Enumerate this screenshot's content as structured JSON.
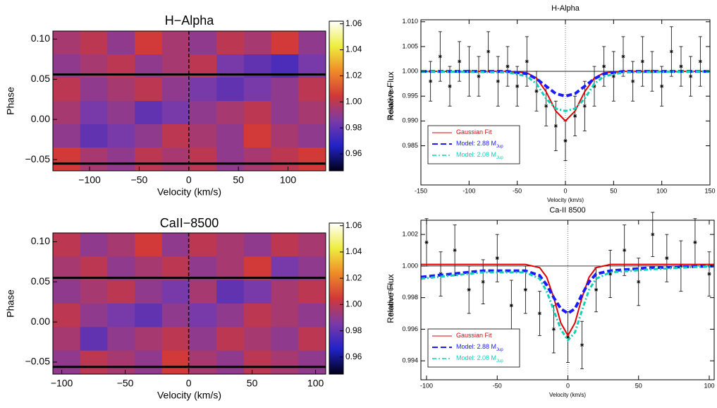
{
  "chart_data": [
    {
      "type": "heatmap",
      "title": "H−Alpha",
      "xlabel": "Velocity (km/s)",
      "ylabel": "Phase",
      "colorbar_label": "Relative Flux",
      "xlim": [
        -137,
        138
      ],
      "ylim": [
        -0.064,
        0.11
      ],
      "zlim": [
        0.947,
        1.062
      ],
      "xticks": [
        {
          "value": -100,
          "label": "−100"
        },
        {
          "value": -50,
          "label": "−50"
        },
        0,
        50,
        100
      ],
      "yticks": [
        {
          "value": -0.05,
          "label": "−0.05"
        },
        {
          "value": 0,
          "label": "0.00"
        },
        0.05,
        {
          "value": 0.1,
          "label": "0.10"
        }
      ],
      "zticks": [
        0.96,
        0.98,
        {
          "value": 1,
          "label": "1.00"
        },
        1.02,
        1.04,
        1.06
      ],
      "colormap": [
        "#000018",
        "#2222c8",
        "#7a3aa8",
        "#d03838",
        "#f08a28",
        "#eeee40",
        "#ffffff"
      ],
      "hlines": [
        0.056,
        -0.055
      ],
      "vlines": [
        0
      ],
      "z": [
        [
          0.995,
          1.0,
          0.99,
          1.005,
          0.995,
          0.99,
          1.0,
          0.995,
          1.005,
          0.99
        ],
        [
          0.99,
          0.995,
          1.0,
          0.99,
          0.995,
          1.0,
          0.985,
          0.98,
          0.975,
          0.985
        ],
        [
          1.0,
          0.99,
          0.995,
          1.0,
          0.99,
          0.985,
          0.98,
          0.985,
          0.99,
          1.0
        ],
        [
          0.995,
          0.985,
          0.99,
          0.98,
          0.985,
          0.99,
          0.995,
          1.0,
          0.99,
          0.995
        ],
        [
          0.99,
          0.98,
          0.985,
          0.99,
          1.0,
          0.995,
          0.99,
          1.005,
          0.995,
          0.99
        ],
        [
          1.005,
          0.995,
          0.99,
          1.0,
          0.995,
          1.0,
          0.99,
          0.995,
          1.0,
          1.005
        ]
      ]
    },
    {
      "type": "heatmap",
      "title": "CaII−8500",
      "xlabel": "Velocity (km/s)",
      "ylabel": "Phase",
      "colorbar_label": "Relative Flux",
      "xlim": [
        -107,
        108
      ],
      "ylim": [
        -0.065,
        0.111
      ],
      "zlim": [
        0.947,
        1.062
      ],
      "xticks": [
        {
          "value": -100,
          "label": "−100"
        },
        {
          "value": -50,
          "label": "−50"
        },
        0,
        50,
        100
      ],
      "yticks": [
        {
          "value": -0.05,
          "label": "−0.05"
        },
        {
          "value": 0,
          "label": "0.00"
        },
        0.05,
        {
          "value": 0.1,
          "label": "0.10"
        }
      ],
      "zticks": [
        0.96,
        0.98,
        {
          "value": 1,
          "label": "1.00"
        },
        1.02,
        1.04,
        1.06
      ],
      "colormap": [
        "#000018",
        "#2222c8",
        "#7a3aa8",
        "#d03838",
        "#f08a28",
        "#eeee40",
        "#ffffff"
      ],
      "hlines": [
        0.055,
        -0.056
      ],
      "vlines": [
        0
      ],
      "z": [
        [
          1.0,
          0.99,
          0.995,
          1.005,
          0.99,
          1.0,
          0.995,
          0.99,
          1.0,
          0.995
        ],
        [
          0.995,
          1.0,
          0.99,
          0.995,
          1.0,
          0.99,
          0.995,
          1.005,
          0.985,
          0.99
        ],
        [
          0.99,
          0.995,
          1.0,
          0.99,
          0.985,
          0.995,
          0.98,
          0.985,
          0.995,
          1.0
        ],
        [
          1.0,
          0.99,
          0.985,
          0.98,
          0.99,
          0.985,
          0.99,
          1.0,
          0.995,
          0.99
        ],
        [
          0.995,
          0.98,
          0.99,
          0.995,
          1.0,
          0.99,
          1.0,
          0.995,
          0.99,
          1.0
        ],
        [
          0.99,
          1.0,
          0.995,
          0.99,
          1.005,
          0.995,
          0.99,
          1.0,
          0.995,
          0.99
        ]
      ]
    },
    {
      "type": "errorbar",
      "title": "H-Alpha",
      "xlabel": "Velocity (km/s)",
      "ylabel": "Relative Flux",
      "xlim": [
        -150,
        150
      ],
      "ylim": [
        0.9771,
        1.0104
      ],
      "xticks": [
        -150,
        -100,
        -50,
        0,
        50,
        100,
        150
      ],
      "yticks": [
        0.985,
        {
          "value": 0.99,
          "label": "0.990"
        },
        0.995,
        {
          "value": 1,
          "label": "1.000"
        },
        1.005,
        {
          "value": 1.01,
          "label": "1.010"
        }
      ],
      "hline": 1,
      "vline": 0,
      "observations": {
        "x": [
          -140,
          -130,
          -120,
          -110,
          -100,
          -90,
          -80,
          -70,
          -60,
          -50,
          -40,
          -30,
          -20,
          -10,
          0,
          10,
          20,
          30,
          40,
          50,
          60,
          70,
          80,
          90,
          100,
          110,
          120,
          130,
          140
        ],
        "values": [
          0.998,
          1.003,
          0.997,
          1.002,
          1.0,
          0.999,
          1.004,
          0.998,
          1.001,
          0.997,
          1.002,
          0.996,
          0.993,
          0.989,
          0.986,
          0.991,
          0.993,
          0.997,
          1.001,
          0.999,
          1.003,
          0.998,
          1.002,
          1.0,
          0.997,
          1.004,
          1.001,
          0.999,
          1.002
        ],
        "errors": [
          0.004,
          0.005,
          0.004,
          0.004,
          0.005,
          0.004,
          0.004,
          0.005,
          0.004,
          0.004,
          0.005,
          0.004,
          0.004,
          0.005,
          0.004,
          0.004,
          0.005,
          0.004,
          0.004,
          0.005,
          0.004,
          0.004,
          0.005,
          0.004,
          0.004,
          0.005,
          0.004,
          0.004,
          0.005
        ]
      },
      "series": [
        {
          "name": "Gaussian Fit",
          "color": "#e00000",
          "dash": "solid",
          "x": [
            -150,
            -60,
            -40,
            -30,
            -20,
            -10,
            0,
            10,
            20,
            30,
            40,
            60,
            150
          ],
          "values": [
            1.0,
            1.0,
            0.9997,
            0.99865,
            0.99589,
            0.992,
            0.99,
            0.992,
            0.99589,
            0.99865,
            0.9997,
            1.0,
            1.0
          ]
        },
        {
          "name": "Model: 2.88 M",
          "name_sub": "Jup",
          "color": "#1a1aff",
          "dash": "dashed",
          "x": [
            -150,
            -60,
            -40,
            -30,
            -20,
            -10,
            0,
            10,
            20,
            30,
            40,
            60,
            150
          ],
          "values": [
            1.0,
            1.0,
            0.9995,
            0.9985,
            0.997,
            0.9955,
            0.995,
            0.9955,
            0.997,
            0.9985,
            0.9995,
            1.0,
            1.0
          ]
        },
        {
          "name": "Model: 2.08 M",
          "name_sub": "Jup",
          "color": "#10d0b8",
          "dash": "dashdot",
          "x": [
            -150,
            -60,
            -40,
            -30,
            -20,
            -10,
            0,
            10,
            20,
            30,
            40,
            60,
            150
          ],
          "values": [
            1.0,
            0.9998,
            0.999,
            0.9975,
            0.9945,
            0.9925,
            0.992,
            0.9925,
            0.9945,
            0.9975,
            0.999,
            0.9998,
            1.0
          ]
        }
      ]
    },
    {
      "type": "errorbar",
      "title": "Ca-II 8500",
      "xlabel": "Velocity (km/s)",
      "ylabel": "Relative Flux",
      "xlim": [
        -104,
        103.5
      ],
      "ylim": [
        0.9928,
        1.0029
      ],
      "xticks": [
        -100,
        -50,
        0,
        50,
        100
      ],
      "yticks": [
        0.994,
        0.996,
        0.998,
        {
          "value": 1,
          "label": "1.000"
        },
        1.002
      ],
      "hline": 1,
      "vline": 0,
      "observations": {
        "x": [
          -100,
          -90,
          -80,
          -70,
          -60,
          -50,
          -40,
          -30,
          -20,
          -10,
          0,
          10,
          20,
          30,
          40,
          50,
          60,
          70,
          80,
          90,
          100
        ],
        "values": [
          1.0015,
          0.9995,
          1.001,
          0.9985,
          0.999,
          1.0005,
          0.9975,
          0.9985,
          0.997,
          0.996,
          0.9955,
          0.995,
          0.9985,
          0.9995,
          1.001,
          0.999,
          1.002,
          1.0005,
          1.0,
          1.0015,
          0.9995
        ],
        "errors": [
          0.0015,
          0.0014,
          0.0016,
          0.0015,
          0.0014,
          0.0015,
          0.0016,
          0.0015,
          0.0014,
          0.0015,
          0.0016,
          0.0015,
          0.0014,
          0.0015,
          0.0016,
          0.0015,
          0.0014,
          0.0015,
          0.0016,
          0.0015,
          0.0014
        ]
      },
      "series": [
        {
          "name": "Gaussian Fit",
          "color": "#e00000",
          "dash": "solid",
          "x": [
            -104,
            -60,
            -30,
            -20,
            -15,
            -10,
            -5,
            0,
            5,
            10,
            15,
            20,
            30,
            60,
            103.5
          ],
          "values": [
            1.0001,
            1.0001,
            1.0001,
            0.9999,
            0.9993,
            0.998,
            0.9964,
            0.9956,
            0.9964,
            0.998,
            0.9993,
            0.9999,
            1.0001,
            1.0001,
            1.0001
          ]
        },
        {
          "name": "Model: 2.88 M",
          "name_sub": "Jup",
          "color": "#1a1aff",
          "dash": "dashed",
          "x": [
            -104,
            -60,
            -30,
            -20,
            -15,
            -10,
            -5,
            0,
            5,
            10,
            15,
            20,
            30,
            60,
            103.5
          ],
          "values": [
            0.9993,
            0.9997,
            0.9997,
            0.9994,
            0.9988,
            0.998,
            0.9973,
            0.997,
            0.9973,
            0.9982,
            0.999,
            0.9995,
            0.9997,
            0.9999,
            1.0
          ]
        },
        {
          "name": "Model: 2.08 M",
          "name_sub": "Jup",
          "color": "#10d0b8",
          "dash": "dashdot",
          "x": [
            -104,
            -60,
            -30,
            -20,
            -15,
            -10,
            -5,
            0,
            5,
            10,
            15,
            20,
            30,
            60,
            103.5
          ],
          "values": [
            0.9992,
            0.9996,
            0.9996,
            0.9992,
            0.9984,
            0.9972,
            0.996,
            0.9953,
            0.9958,
            0.9972,
            0.9985,
            0.9992,
            0.9996,
            0.9998,
            1.0
          ]
        }
      ]
    }
  ]
}
